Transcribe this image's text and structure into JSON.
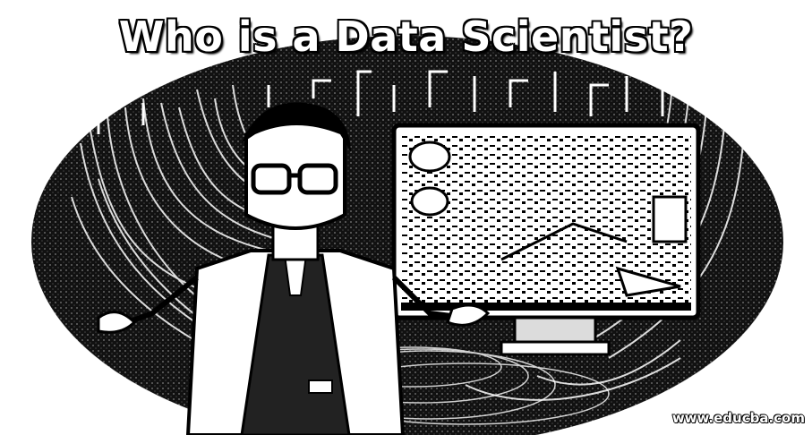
{
  "title": "Who is a Data Scientist?",
  "watermark": "www.educba.com",
  "colors": {
    "ink": "#000000",
    "paper": "#ffffff",
    "screen": "#dcdcdc"
  },
  "icons": [
    "scientist-figure",
    "glasses",
    "data-board",
    "cable-tangle"
  ]
}
